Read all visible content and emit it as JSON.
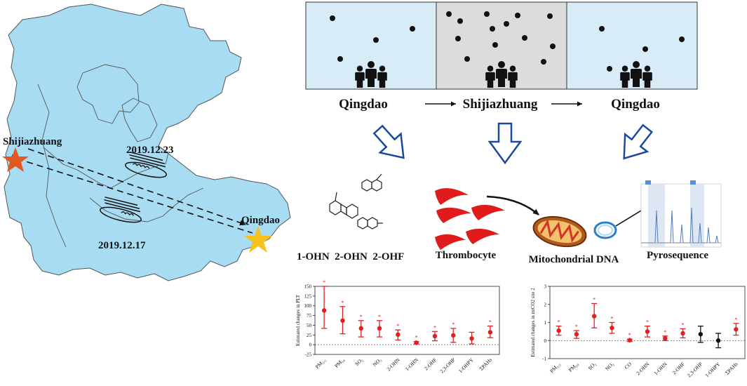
{
  "map": {
    "shijiazhuang_label": "Shijiazhuang",
    "qingdao_label": "Qingdao",
    "date_upper": "2019.12.23",
    "date_lower": "2019.12.17",
    "land_color": "#a8dcf2",
    "star_sjz_color": "#e2581f",
    "star_qd_color": "#f7c21e"
  },
  "scenes": {
    "panels": [
      {
        "label": "Qingdao",
        "bg": "#d8ecf7"
      },
      {
        "label": "Shijiazhuang",
        "bg": "#dcdcdc"
      },
      {
        "label": "Qingdao",
        "bg": "#d8ecf7"
      }
    ]
  },
  "workflow": {
    "metabolites_label": "1-OHN  2-OHN  2-OHF",
    "thrombocyte_label": "Thrombocyte",
    "mtdna_label": "Mitochondrial DNA",
    "pyro_label": "Pyrosequence",
    "platelet_color": "#e01b1b",
    "arrow_color": "#1a4a9c"
  },
  "chart_data": [
    {
      "type": "scatter",
      "ylabel": "Estimated changes in PLT",
      "categories": [
        "PM2.5",
        "PM10",
        "SO2",
        "NO2",
        "2-OHN",
        "1-OHN",
        "2-OHF",
        "2,3-OHP",
        "1-OHPY",
        "ΣPAHs"
      ],
      "category_labels": [
        "PM₂.₅",
        "PM₁₀",
        "SO₂",
        "NO₂",
        "2-OHN",
        "1-OHN",
        "2-OHF",
        "2,3-OHP",
        "1-OHPY",
        "ΣPAHs"
      ],
      "values": [
        88,
        62,
        42,
        42,
        26,
        5,
        22,
        24,
        16,
        32
      ],
      "lower": [
        42,
        28,
        20,
        20,
        12,
        2,
        10,
        6,
        2,
        18
      ],
      "upper": [
        150,
        98,
        62,
        62,
        38,
        8,
        34,
        42,
        32,
        48
      ],
      "significant": [
        true,
        true,
        true,
        true,
        true,
        true,
        true,
        true,
        false,
        true
      ],
      "ylim": [
        -25,
        150
      ],
      "yticks": [
        "150",
        "125",
        "100",
        "75",
        "50",
        "25",
        "0",
        "-25"
      ],
      "point_color": "#e02020"
    },
    {
      "type": "scatter",
      "ylabel": "Estimated changes in mtCO2 site 2",
      "categories": [
        "PM2.5",
        "PM10",
        "SO2",
        "NO2",
        "CO",
        "2-OHN",
        "1-OHN",
        "2-OHF",
        "2,3-OHP",
        "1-OHPY",
        "ΣPAHs"
      ],
      "category_labels": [
        "PM₂.₅",
        "PM₁₀",
        "SO₂",
        "NO₂",
        "CO",
        "2-OHN",
        "1-OHN",
        "2-OHF",
        "2,3-OHP",
        "1-OHPY",
        "ΣPAHs"
      ],
      "values": [
        0.55,
        0.35,
        1.35,
        0.7,
        0.02,
        0.5,
        0.12,
        0.4,
        0.35,
        0.0,
        0.62
      ],
      "lower": [
        0.3,
        0.12,
        0.7,
        0.4,
        -0.05,
        0.2,
        0.0,
        0.15,
        -0.1,
        -0.4,
        0.3
      ],
      "upper": [
        0.8,
        0.55,
        2.05,
        1.0,
        0.08,
        0.8,
        0.25,
        0.65,
        0.8,
        0.4,
        0.95
      ],
      "significant": [
        true,
        true,
        true,
        true,
        true,
        true,
        true,
        true,
        false,
        false,
        true
      ],
      "colors": [
        "#e02020",
        "#e02020",
        "#e02020",
        "#e02020",
        "#e02020",
        "#e02020",
        "#e02020",
        "#e02020",
        "#111111",
        "#111111",
        "#e02020"
      ],
      "ylim": [
        -1,
        3
      ],
      "yticks": [
        "3",
        "2",
        "1",
        "0",
        "-1"
      ]
    }
  ]
}
